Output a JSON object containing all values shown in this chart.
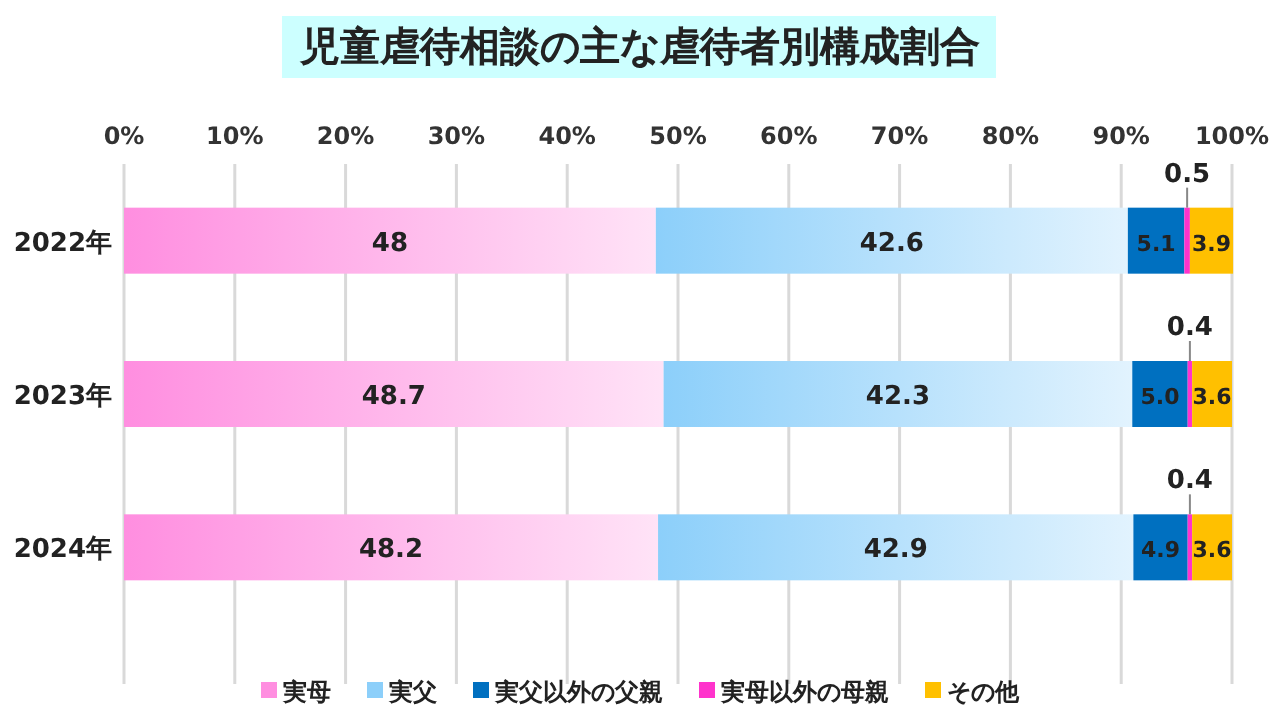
{
  "chart_data": {
    "type": "bar",
    "title": "児童虐待相談の主な虐待者別構成割合",
    "orientation": "horizontal",
    "stacked": true,
    "categories": [
      "2022年",
      "2023年",
      "2024年"
    ],
    "series": [
      {
        "name": "実母",
        "color": "#ff8ee0",
        "values": [
          48,
          48.7,
          48.2
        ]
      },
      {
        "name": "実父",
        "color": "#8ccffa",
        "values": [
          42.6,
          42.3,
          42.9
        ]
      },
      {
        "name": "実父以外の父親",
        "color": "#0070c0",
        "values": [
          5.1,
          5.0,
          4.9
        ],
        "value_labels": [
          "5.1",
          "5.0",
          "4.9"
        ]
      },
      {
        "name": "実母以外の母親",
        "color": "#ff33cc",
        "values": [
          0.5,
          0.4,
          0.4
        ]
      },
      {
        "name": "その他",
        "color": "#ffc000",
        "values": [
          3.9,
          3.6,
          3.6
        ]
      }
    ],
    "xlim": [
      0,
      100
    ],
    "xticks": [
      {
        "value": 0,
        "label": "0%"
      },
      {
        "value": 10,
        "label": "10%"
      },
      {
        "value": 20,
        "label": "20%"
      },
      {
        "value": 30,
        "label": "30%"
      },
      {
        "value": 40,
        "label": "40%"
      },
      {
        "value": 50,
        "label": "50%"
      },
      {
        "value": 60,
        "label": "60%"
      },
      {
        "value": 70,
        "label": "70%"
      },
      {
        "value": 80,
        "label": "80%"
      },
      {
        "value": 90,
        "label": "90%"
      },
      {
        "value": 100,
        "label": "100%"
      }
    ],
    "grid": "x",
    "legend": "bottom",
    "data_labels": true
  }
}
